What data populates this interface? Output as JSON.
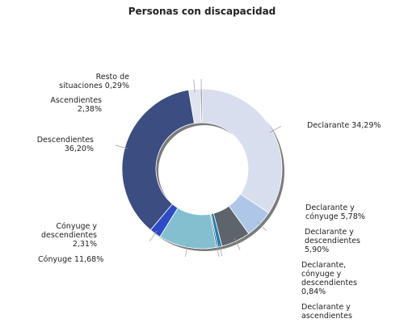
{
  "chart_data": {
    "type": "pie",
    "title": "Personas con discapacidad",
    "series": [
      {
        "categories": [
          "Declarante",
          "Declarante y cónyuge",
          "Declarante y descendientes",
          "Declarante, cónyuge y descendientes",
          "Declarante y ascendientes",
          "Cónyuge",
          "Cónyuge y descendientes",
          "Descendientes",
          "Ascendientes",
          "Resto de situaciones"
        ],
        "values": [
          34.29,
          5.78,
          5.9,
          0.84,
          0.3,
          11.68,
          2.31,
          36.2,
          2.38,
          0.29
        ],
        "colors": [
          "#d9deef",
          "#aec6e8",
          "#5e646c",
          "#1e7fae",
          "#1f3d6e",
          "#84bfd0",
          "#2e4bc6",
          "#3c4d82",
          "#e0e4ef",
          "#606878"
        ]
      }
    ],
    "labels": [
      [
        "Declarante 34,29%"
      ],
      [
        "Declarante y",
        "cónyuge 5,78%"
      ],
      [
        "Declarante y",
        "descendientes",
        "5,90%"
      ],
      [
        "Declarante,",
        "cónyuge y",
        "descendientes",
        "0,84%"
      ],
      [
        "Declarante y",
        "ascendientes"
      ],
      [
        "Cónyuge 11,68%"
      ],
      [
        "Cónyuge y",
        "descendientes",
        "2,31%"
      ],
      [
        "Descendientes",
        "36,20%"
      ],
      [
        "Ascendientes",
        "2,38%"
      ],
      [
        "Resto de",
        "situaciones 0,29%"
      ]
    ],
    "legend": "none"
  }
}
